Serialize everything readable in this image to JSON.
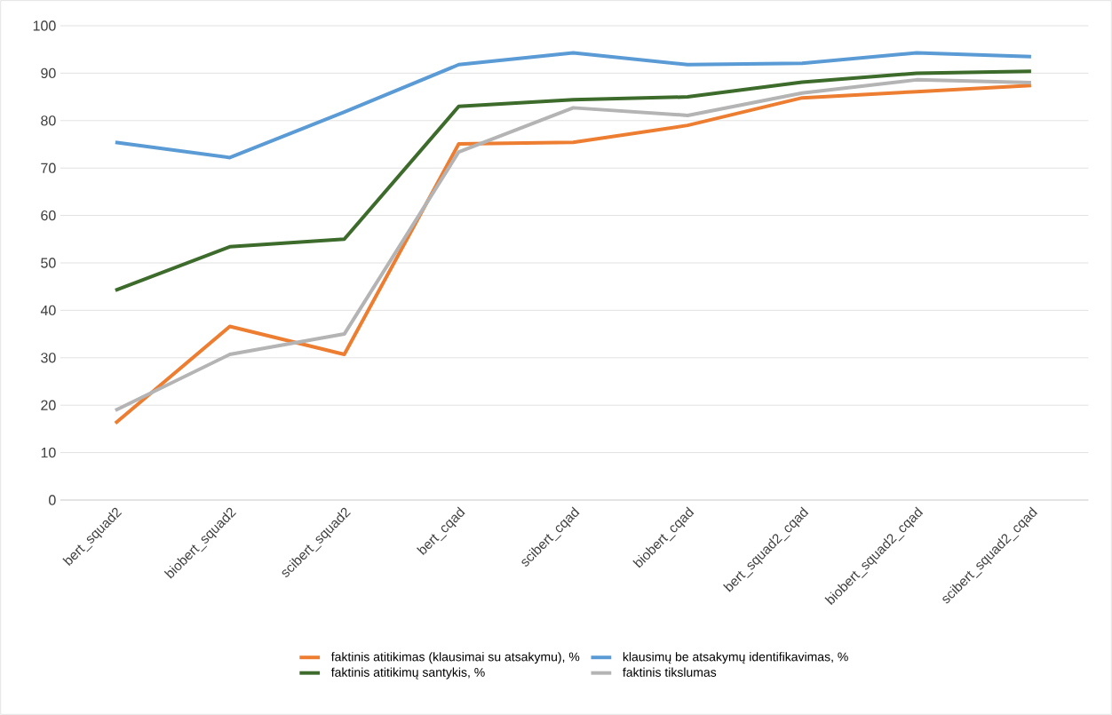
{
  "chart_data": {
    "type": "line",
    "categories": [
      "bert_squad2",
      "biobert_squad2",
      "scibert_squad2",
      "bert_cqad",
      "scibert_cqad",
      "biobert_cqad",
      "bert_squad2_cqad",
      "biobert_squad2_cqad",
      "scibert_squad2_cqad"
    ],
    "series": [
      {
        "name": "faktinis atitikimas (klausimai su atsakymu), %",
        "color": "#ed7d31",
        "values": [
          16.2,
          36.6,
          30.7,
          75.1,
          75.4,
          79.0,
          84.8,
          86.1,
          87.4
        ]
      },
      {
        "name": "klausimų be atsakymų identifikavimas, %",
        "color": "#5b9bd5",
        "values": [
          75.4,
          72.2,
          81.8,
          91.8,
          94.3,
          91.8,
          92.1,
          94.3,
          93.5
        ]
      },
      {
        "name": "faktinis atitikimų santykis, %",
        "color": "#3d6b2b",
        "values": [
          44.2,
          53.4,
          55.0,
          83.0,
          84.4,
          85.0,
          88.1,
          90.0,
          90.4
        ]
      },
      {
        "name": "faktinis tikslumas",
        "color": "#b4b4b4",
        "values": [
          18.9,
          30.7,
          35.0,
          73.4,
          82.7,
          81.1,
          85.8,
          88.6,
          88.0
        ]
      }
    ],
    "ylim": [
      0,
      100
    ],
    "yticks": [
      0,
      10,
      20,
      30,
      40,
      50,
      60,
      70,
      80,
      90,
      100
    ],
    "grid": "y",
    "legend": "bottom",
    "marker": "none",
    "line_style": "solid"
  }
}
